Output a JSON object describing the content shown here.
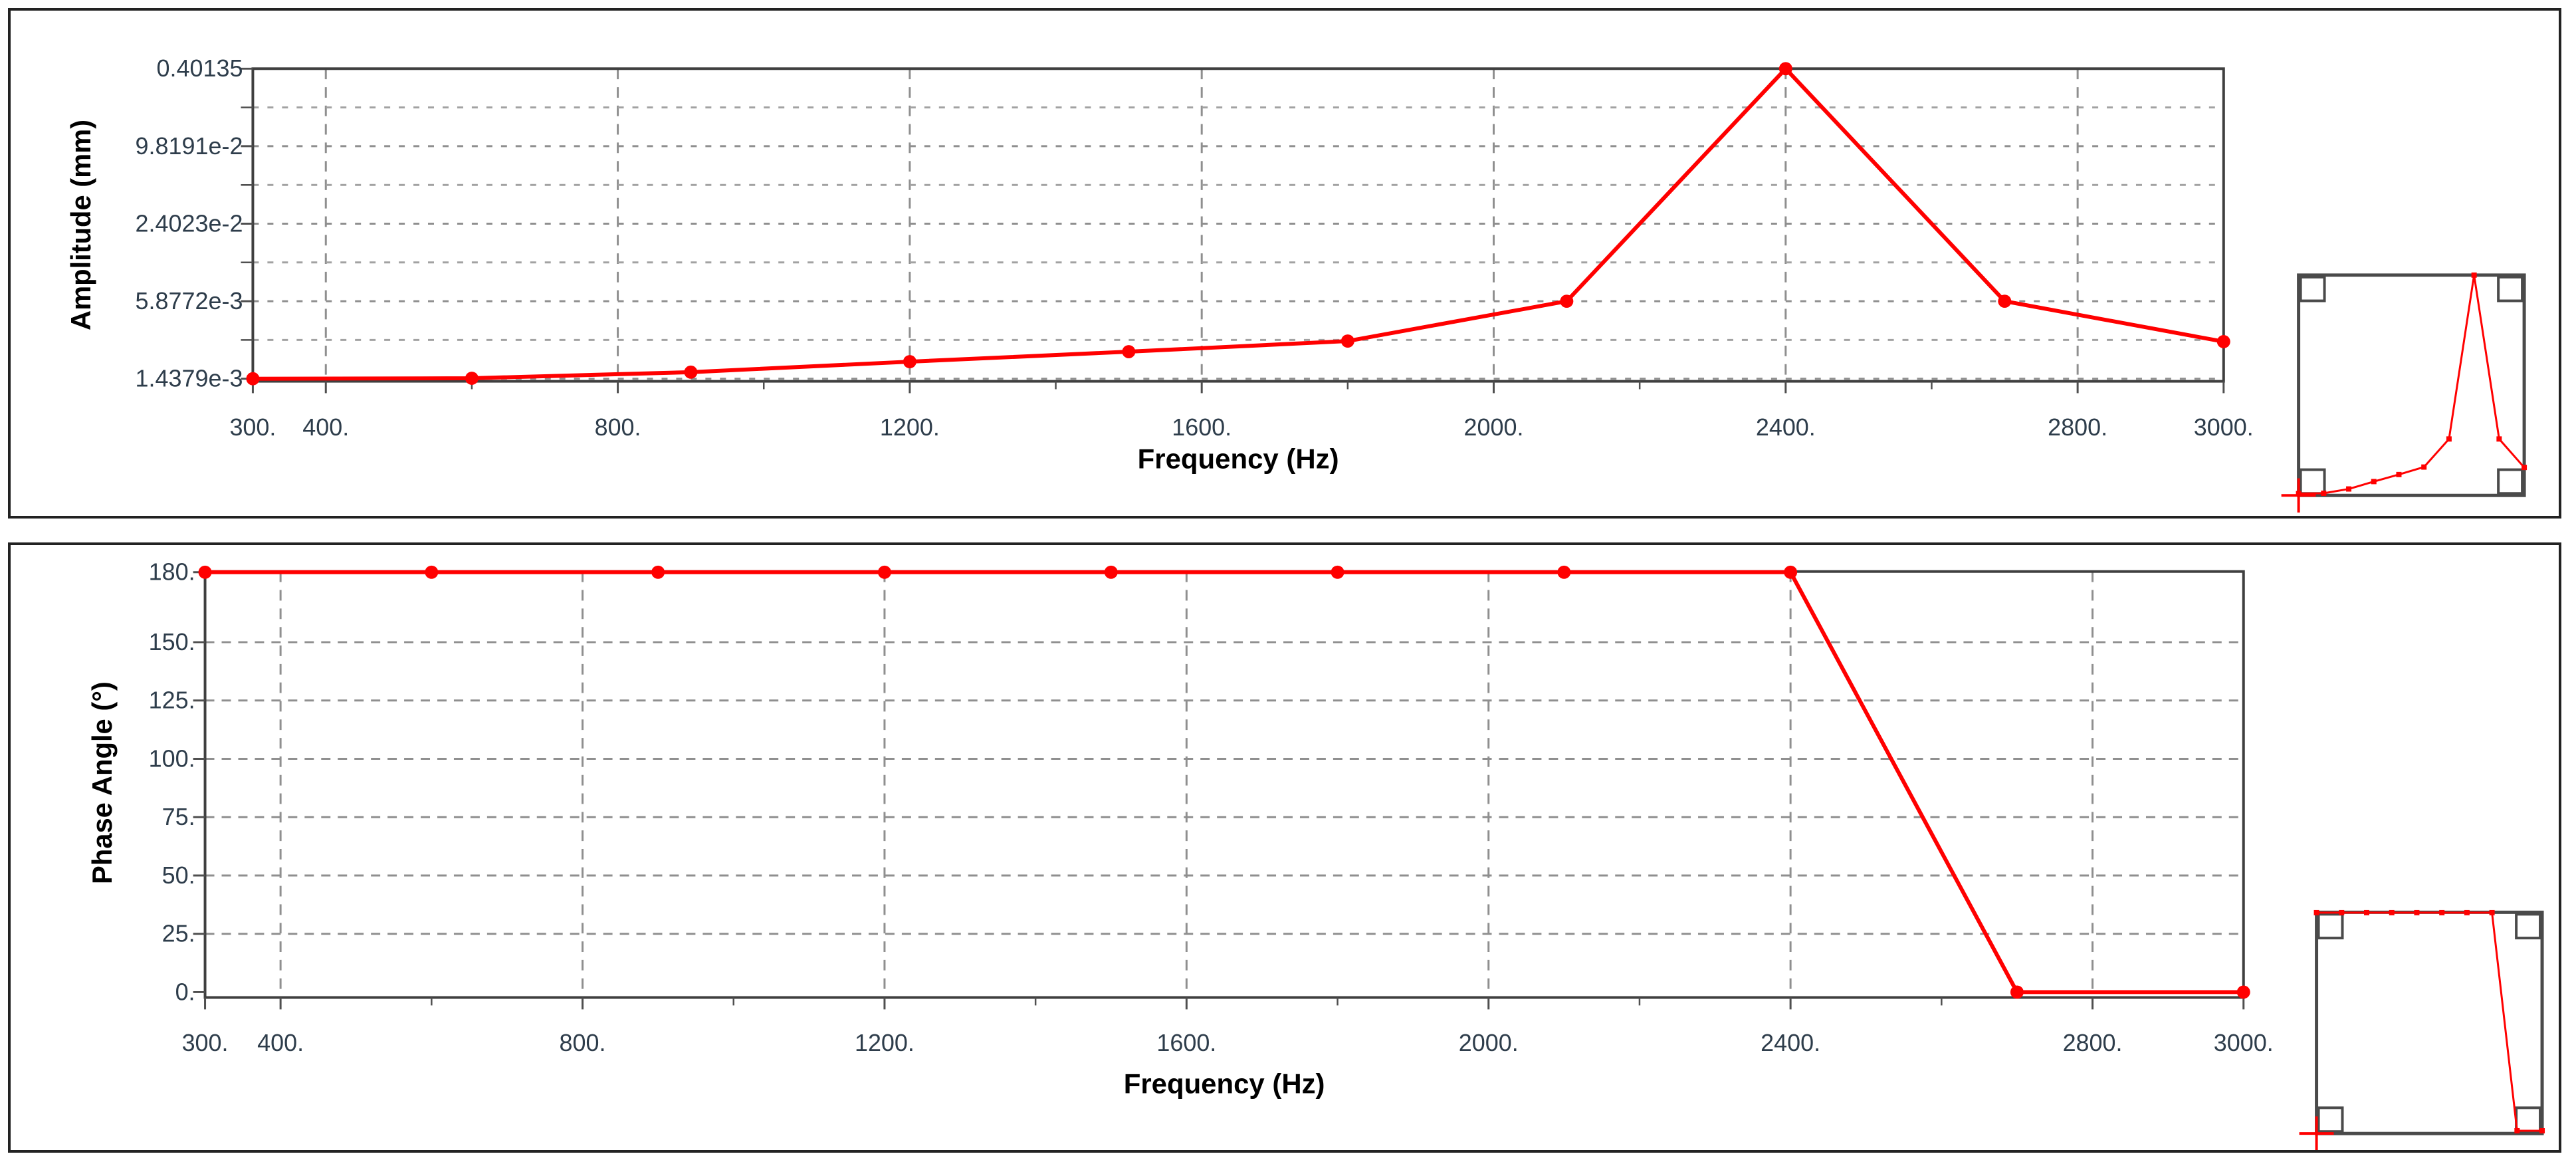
{
  "page": {
    "background": "#ffffff",
    "description": "Two stacked harmonic-response result charts: amplitude (log scale) and phase angle versus frequency, each with a small preview thumbnail at the right with corner resize handles."
  },
  "colors": {
    "series": "#ff0000",
    "frame": "#3f3f3f",
    "grid": "#8f8f8f",
    "minor_grid": "#a2a2a2",
    "tick_text": "#2e3d4b",
    "axis_title_text": "#000000",
    "panel_border": "#222222",
    "handle": "#4a4a4a",
    "tick_mark": "#4f4f4f"
  },
  "chart_data": [
    {
      "type": "line",
      "title": "",
      "xlabel": "Frequency (Hz)",
      "ylabel": "Amplitude (mm)",
      "y_scale": "log",
      "x_range": [
        300,
        3000
      ],
      "x": [
        300,
        600,
        900,
        1200,
        1500,
        1800,
        2100,
        2400,
        2700,
        3000
      ],
      "y": [
        0.0014379,
        0.00145,
        0.00162,
        0.00196,
        0.00235,
        0.00285,
        0.0058772,
        0.40135,
        0.0058772,
        0.00282
      ],
      "line_color": "#ff0000",
      "x_ticks": [
        {
          "value": 300,
          "label": "300."
        },
        {
          "value": 400,
          "label": "400."
        },
        {
          "value": 800,
          "label": "800."
        },
        {
          "value": 1200,
          "label": "1200."
        },
        {
          "value": 1600,
          "label": "1600."
        },
        {
          "value": 2000,
          "label": "2000."
        },
        {
          "value": 2400,
          "label": "2400."
        },
        {
          "value": 2800,
          "label": "2800."
        },
        {
          "value": 3000,
          "label": "3000."
        }
      ],
      "x_minor_ticks": [
        600,
        1000,
        1400,
        1800,
        2200,
        2600
      ],
      "x_gridlines": [
        400,
        800,
        1200,
        1600,
        2000,
        2400,
        2800
      ],
      "y_ticks": [
        {
          "value": 0.40135,
          "label": "0.40135"
        },
        {
          "value": 0.098191,
          "label": "9.8191e-2"
        },
        {
          "value": 0.024023,
          "label": "2.4023e-2"
        },
        {
          "value": 0.0058772,
          "label": "5.8772e-3"
        },
        {
          "value": 0.0014379,
          "label": "1.4379e-3"
        }
      ],
      "y_gridlines": [
        0.098191,
        0.024023,
        0.0058772,
        0.0014379
      ],
      "y_minor_gridlines": [
        0.19853,
        0.048567,
        0.011884,
        0.0029066
      ],
      "legend": "none",
      "grid": "on"
    },
    {
      "type": "line",
      "title": "",
      "xlabel": "Frequency (Hz)",
      "ylabel": "Phase Angle (°)",
      "y_scale": "linear",
      "x_range": [
        300,
        3000
      ],
      "x": [
        300,
        600,
        900,
        1200,
        1500,
        1800,
        2100,
        2400,
        2700,
        3000
      ],
      "y": [
        180,
        180,
        180,
        180,
        180,
        180,
        180,
        180,
        0,
        0
      ],
      "line_color": "#ff0000",
      "x_ticks": [
        {
          "value": 300,
          "label": "300."
        },
        {
          "value": 400,
          "label": "400."
        },
        {
          "value": 800,
          "label": "800."
        },
        {
          "value": 1200,
          "label": "1200."
        },
        {
          "value": 1600,
          "label": "1600."
        },
        {
          "value": 2000,
          "label": "2000."
        },
        {
          "value": 2400,
          "label": "2400."
        },
        {
          "value": 2800,
          "label": "2800."
        },
        {
          "value": 3000,
          "label": "3000."
        }
      ],
      "x_minor_ticks": [
        600,
        1000,
        1400,
        1800,
        2200,
        2600
      ],
      "x_gridlines": [
        400,
        800,
        1200,
        1600,
        2000,
        2400,
        2800
      ],
      "y_ticks": [
        {
          "value": 180,
          "label": "180."
        },
        {
          "value": 150,
          "label": "150."
        },
        {
          "value": 125,
          "label": "125."
        },
        {
          "value": 100,
          "label": "100."
        },
        {
          "value": 75,
          "label": "75."
        },
        {
          "value": 50,
          "label": "50."
        },
        {
          "value": 25,
          "label": "25."
        },
        {
          "value": 0,
          "label": "0."
        }
      ],
      "y_gridlines": [
        150,
        125,
        100,
        75,
        50,
        25
      ],
      "y_minor_gridlines": [],
      "legend": "none",
      "grid": "on"
    }
  ]
}
